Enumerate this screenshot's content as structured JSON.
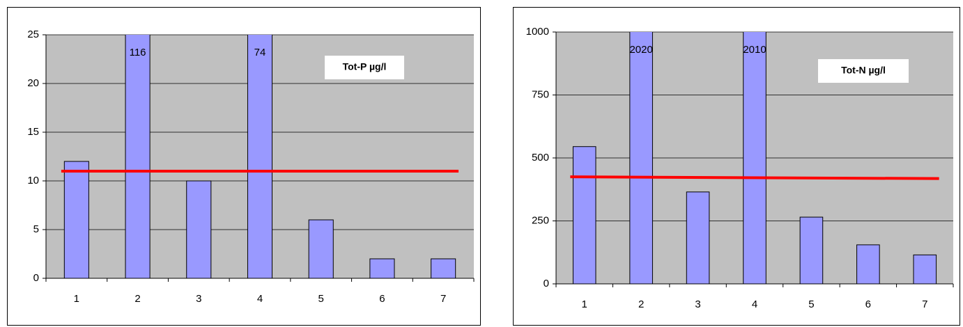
{
  "chart_data": [
    {
      "type": "bar",
      "annotation": "Tot-P µg/l",
      "categories": [
        "1",
        "2",
        "3",
        "4",
        "5",
        "6",
        "7"
      ],
      "values": [
        12,
        116,
        10,
        74,
        6,
        2,
        2
      ],
      "value_labels": [
        null,
        "116",
        null,
        "74",
        null,
        null,
        null
      ],
      "color": "#9999ff",
      "ylim": [
        0,
        25
      ],
      "yticks": [
        0,
        5,
        10,
        15,
        20,
        25
      ],
      "grid": true,
      "reference_line": {
        "values": [
          11,
          11
        ],
        "color": "#ff0000"
      }
    },
    {
      "type": "bar",
      "annotation": "Tot-N µg/l",
      "categories": [
        "1",
        "2",
        "3",
        "4",
        "5",
        "6",
        "7"
      ],
      "values": [
        545,
        2020,
        365,
        2010,
        265,
        155,
        115
      ],
      "value_labels": [
        null,
        "2020",
        null,
        "2010",
        null,
        null,
        null
      ],
      "color": "#9999ff",
      "ylim": [
        0,
        1000
      ],
      "yticks": [
        0,
        250,
        500,
        750,
        1000
      ],
      "grid": true,
      "reference_line": {
        "values": [
          425,
          418
        ],
        "color": "#ff0000"
      }
    }
  ]
}
